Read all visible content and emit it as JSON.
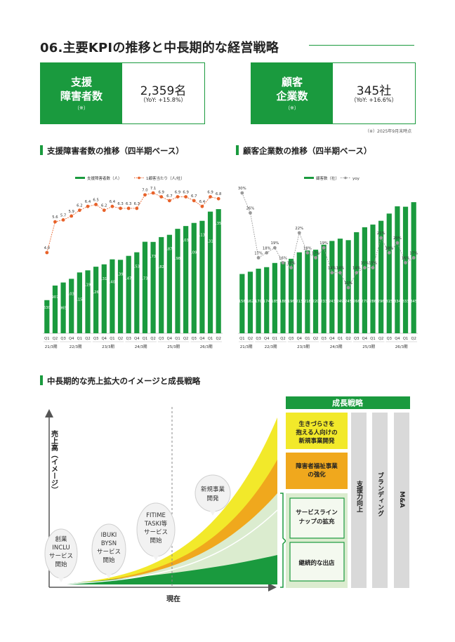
{
  "page": {
    "title": "06.主要KPIの推移と中長期的な経営戦略",
    "note": "（※）2025年9月末時点"
  },
  "kpis": [
    {
      "label_line1": "支援",
      "label_line2": "障害者数",
      "label_note": "（※）",
      "value": "2,359名",
      "yoy": "（YoY: +15.8%）"
    },
    {
      "label_line1": "顧客",
      "label_line2": "企業数",
      "label_note": "（※）",
      "value": "345社",
      "yoy": "（YoY: +16.6%）"
    }
  ],
  "sections": {
    "chart1": "支援障害者数の推移（四半期ベース）",
    "chart2": "顧客企業数の推移（四半期ベース）",
    "strategy": "中長期的な売上拡大のイメージと成長戦略"
  },
  "colors": {
    "green": "#1a9a3e",
    "orange": "#e8622a",
    "gray": "#9a9a9a",
    "yellow": "#f2e92a",
    "amber": "#f0a81d",
    "pale_green": "#dbeccf"
  },
  "chart_data": [
    {
      "type": "bar",
      "title": "支援障害者数の推移（四半期ベース）",
      "categories": [
        "Q1",
        "Q2",
        "Q3",
        "Q4",
        "Q1",
        "Q2",
        "Q3",
        "Q4",
        "Q1",
        "Q2",
        "Q3",
        "Q4",
        "Q1",
        "Q2",
        "Q3",
        "Q4",
        "Q1",
        "Q2",
        "Q3",
        "Q4",
        "Q1",
        "Q2"
      ],
      "year_labels": [
        "21/3期",
        "22/3期",
        "23/3期",
        "24/3期",
        "25/3期",
        "26/3期"
      ],
      "series": [
        {
          "name": "支援障害者数（人）",
          "type": "bar",
          "values": [
            630,
            907,
            965,
            1035,
            1156,
            1196,
            1265,
            1310,
            1405,
            1396,
            1471,
            1539,
            1739,
            1736,
            1828,
            1871,
            1985,
            2038,
            2097,
            2137,
            2312,
            2359
          ],
          "labels": [
            "630",
            "907",
            "965",
            "1,035",
            "1,156",
            "1,196",
            "1,265",
            "1,310",
            "1,405",
            "1,396",
            "1,471",
            "1,539",
            "1,739",
            "1,736",
            "1,828",
            "1,871",
            "1,985",
            "2,038",
            "2,097",
            "2,137",
            "2,312",
            "2,359"
          ]
        },
        {
          "name": "1顧客当たり（人/社）",
          "type": "line",
          "values": [
            4.0,
            5.6,
            5.7,
            5.9,
            6.2,
            6.4,
            6.5,
            6.2,
            6.4,
            6.3,
            6.3,
            6.3,
            7.0,
            7.1,
            6.9,
            6.7,
            6.9,
            6.9,
            6.7,
            6.4,
            6.9,
            6.8
          ],
          "labels": [
            "4.0",
            "5.6",
            "5.7",
            "5.9",
            "6.2",
            "6.4",
            "6.5",
            "6.2",
            "6.4",
            "6.3",
            "6.3",
            "6.3",
            "7.0",
            "7.1",
            "6.9",
            "6.7",
            "6.9",
            "6.9",
            "6.7",
            "6.4",
            "6.9",
            "6.8"
          ]
        }
      ],
      "ylim": [
        0,
        2600
      ]
    },
    {
      "type": "bar",
      "title": "顧客企業数の推移（四半期ベース）",
      "categories": [
        "Q1",
        "Q2",
        "Q3",
        "Q4",
        "Q1",
        "Q2",
        "Q3",
        "Q4",
        "Q1",
        "Q2",
        "Q3",
        "Q4",
        "Q1",
        "Q2",
        "Q3",
        "Q4",
        "Q1",
        "Q2",
        "Q3",
        "Q4",
        "Q1",
        "Q2"
      ],
      "year_labels": [
        "21/3期",
        "22/3期",
        "23/3期",
        "24/3期",
        "25/3期",
        "26/3期"
      ],
      "series": [
        {
          "name": "顧客数（社）",
          "type": "bar",
          "values": [
            156,
            162,
            170,
            174,
            185,
            188,
            196,
            213,
            218,
            220,
            233,
            243,
            249,
            245,
            266,
            279,
            286,
            296,
            315,
            334,
            333,
            345
          ],
          "labels": [
            "156",
            "162",
            "170",
            "174",
            "185",
            "188",
            "196",
            "213",
            "218",
            "220",
            "233",
            "243",
            "249",
            "245",
            "266",
            "279",
            "286",
            "296",
            "315",
            "334",
            "333",
            "345"
          ]
        },
        {
          "name": "yoy",
          "type": "line",
          "values": [
            30,
            26,
            17,
            18,
            19,
            16,
            15,
            22,
            18,
            17,
            19,
            14,
            14,
            11,
            14,
            15,
            15,
            21,
            18,
            20,
            16,
            17
          ],
          "labels": [
            "30%",
            "26%",
            "17%",
            "18%",
            "19%",
            "16%",
            "15%",
            "22%",
            "18%",
            "17%",
            "19%",
            "14%",
            "14%",
            "11%",
            "14%",
            "15%",
            "15%",
            "21%",
            "18%",
            "20%",
            "16%",
            "17%"
          ]
        }
      ],
      "ylim": [
        0,
        360
      ]
    }
  ],
  "strategy": {
    "y_axis_label": "売上高（イメージ）",
    "x_axis_label": "現在",
    "milestones": [
      {
        "lines": [
          "創業",
          "INCLU",
          "サービス",
          "開始"
        ]
      },
      {
        "lines": [
          "IBUKI",
          "BYSN",
          "サービス",
          "開始"
        ]
      },
      {
        "lines": [
          "FITIME",
          "TASKI等",
          "サービス",
          "開始"
        ]
      },
      {
        "lines": [
          "新規事業",
          "開発"
        ]
      }
    ],
    "header": "成長戦略",
    "boxes": [
      {
        "lines": [
          "生きづらさを",
          "抱える人向けの",
          "新規事業開発"
        ]
      },
      {
        "lines": [
          "障害者福祉事業",
          "の強化"
        ]
      },
      {
        "lines": [
          "サービスライン",
          "ナップの拡充"
        ]
      },
      {
        "lines": [
          "継続的な出店"
        ]
      }
    ],
    "columns": [
      "支援力向上",
      "ブランディング",
      "M&A"
    ]
  }
}
